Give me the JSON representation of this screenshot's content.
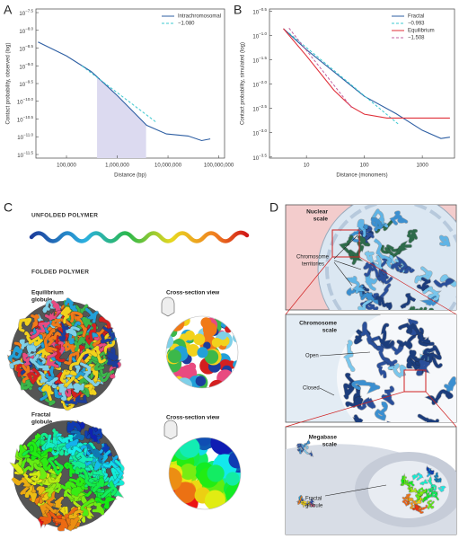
{
  "chart_data": [
    {
      "type": "line",
      "xscale": "log",
      "yscale": "log",
      "legend": "upper right",
      "xlabel": "Distance (bp)",
      "ylabel": "Contact probability, observed (log)",
      "xlim": [
        25000,
        130000000
      ],
      "ylim": [
        2.5e-12,
        4e-08
      ],
      "xticks": [
        {
          "value": 100000,
          "label": "100,000"
        },
        {
          "value": 1000000,
          "label": "1,000,000"
        },
        {
          "value": 10000000,
          "label": "10,000,000"
        },
        {
          "value": 100000000,
          "label": "100,000,000"
        }
      ],
      "yticks": [
        {
          "value": 3.16e-08,
          "label": "10−7.5"
        },
        {
          "value": 1e-08,
          "label": "10−8.0"
        },
        {
          "value": 3.16e-09,
          "label": "10−8.5"
        },
        {
          "value": 1e-09,
          "label": "10−9.0"
        },
        {
          "value": 3.16e-10,
          "label": "10−9.5"
        },
        {
          "value": 1e-10,
          "label": "10−10.0"
        },
        {
          "value": 3.16e-11,
          "label": "10−10.5"
        },
        {
          "value": 1e-11,
          "label": "10−11.0"
        },
        {
          "value": 3.16e-12,
          "label": "10−11.5"
        }
      ],
      "highlight": {
        "x": [
          400000,
          3700000
        ],
        "color": "#dcdaf0"
      },
      "series": [
        {
          "name": "Intrachromosomal",
          "color": "#2e5fa3",
          "dash": false,
          "x": [
            27500,
            100000,
            306000,
            405000,
            1000000,
            3800000,
            9300000,
            25000000,
            46000000,
            68000000
          ],
          "values": [
            4.7e-09,
            1.9e-09,
            6.9e-10,
            4.8e-10,
            1.45e-10,
            2.1e-11,
            1.2e-11,
            1.05e-11,
            7.8e-12,
            8.7e-12
          ]
        },
        {
          "name": "−1.080",
          "color": "#3cc8d0",
          "dash": true,
          "x": [
            200000,
            6000000
          ],
          "values": [
            1e-09,
            2.5e-11
          ]
        }
      ]
    },
    {
      "type": "line",
      "xscale": "log",
      "yscale": "log",
      "legend": "upper right",
      "xlabel": "Distance (monomers)",
      "ylabel": "Contact probability, simulated (log)",
      "xlim": [
        2.3,
        3600
      ],
      "ylim": [
        0.0003,
        0.35
      ],
      "xticks": [
        10,
        100,
        1000
      ],
      "yticks": [
        {
          "value": 0.316,
          "label": "10−0.5"
        },
        {
          "value": 0.1,
          "label": "10−1.0"
        },
        {
          "value": 0.0316,
          "label": "10−1.5"
        },
        {
          "value": 0.01,
          "label": "10−2.0"
        },
        {
          "value": 0.00316,
          "label": "10−2.5"
        },
        {
          "value": 0.001,
          "label": "10−3.0"
        },
        {
          "value": 0.000316,
          "label": "10−3.5"
        }
      ],
      "series": [
        {
          "name": "Fractal",
          "color": "#2e5fa3",
          "dash": false,
          "x": [
            4,
            10,
            100,
            355,
            1000,
            2100,
            3000
          ],
          "values": [
            0.138,
            0.051,
            0.0056,
            0.00245,
            0.00112,
            0.00076,
            0.00081
          ]
        },
        {
          "name": "−0.993",
          "color": "#3cc8d0",
          "dash": true,
          "x": [
            5,
            400
          ],
          "values": [
            0.112,
            0.00145
          ]
        },
        {
          "name": "Equilibrium",
          "color": "#e0303a",
          "dash": false,
          "x": [
            4,
            10,
            30,
            60,
            100,
            245,
            3000
          ],
          "values": [
            0.138,
            0.038,
            0.0074,
            0.0034,
            0.0024,
            0.002,
            0.002
          ]
        },
        {
          "name": "−1.508",
          "color": "#c060a0",
          "dash": true,
          "x": [
            5,
            60
          ],
          "values": [
            0.141,
            0.0033
          ]
        }
      ]
    }
  ],
  "panel_labels": [
    "A",
    "B",
    "C",
    "D"
  ],
  "panel_c": {
    "unfolded_title": "UNFOLDED POLYMER",
    "folded_title": "FOLDED POLYMER",
    "equilibrium_label": [
      "Equilibrium",
      "globule"
    ],
    "fractal_label": [
      "Fractal",
      "globule"
    ],
    "cross_section": [
      "Cross-section view",
      "Cross-section view"
    ]
  },
  "panel_d": {
    "nuclear_scale": [
      "Nuclear",
      "scale"
    ],
    "territories": [
      "Chromosome",
      "territories"
    ],
    "chromosome_scale": [
      "Chromosome",
      "scale"
    ],
    "open": "Open",
    "closed": "Closed",
    "megabase_scale": [
      "Megabase",
      "scale"
    ],
    "fractal_globule": [
      "Fractal",
      "globule"
    ]
  }
}
